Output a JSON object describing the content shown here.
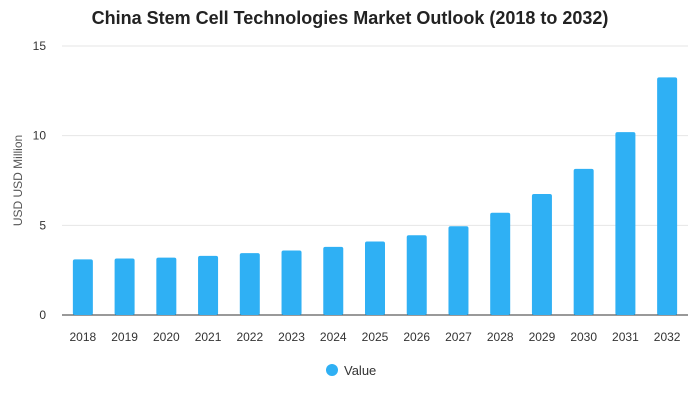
{
  "chart_data": {
    "type": "bar",
    "title": "China Stem Cell Technologies Market Outlook (2018 to 2032)",
    "xlabel": "",
    "ylabel": "USD USD Million",
    "categories": [
      "2018",
      "2019",
      "2020",
      "2021",
      "2022",
      "2023",
      "2024",
      "2025",
      "2026",
      "2027",
      "2028",
      "2029",
      "2030",
      "2031",
      "2032"
    ],
    "series": [
      {
        "name": "Value",
        "values": [
          3.1,
          3.15,
          3.2,
          3.3,
          3.45,
          3.6,
          3.8,
          4.1,
          4.45,
          4.95,
          5.7,
          6.75,
          8.15,
          10.2,
          13.25
        ]
      }
    ],
    "ylim": [
      0,
      15
    ],
    "yticks": [
      "0",
      "5",
      "10",
      "15"
    ],
    "grid": true,
    "legend": "bottom",
    "color": "#2fb0f4"
  }
}
